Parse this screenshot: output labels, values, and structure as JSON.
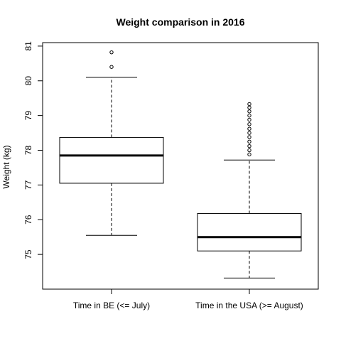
{
  "chart_data": {
    "type": "boxplot",
    "title": "Weight comparison in 2016",
    "xlabel": "",
    "ylabel": "Weight (kg)",
    "ylim": [
      74.0,
      81.1
    ],
    "yticks": [
      75,
      76,
      77,
      78,
      79,
      80,
      81
    ],
    "grid": false,
    "legend": "none",
    "colors": {
      "box": "#000000",
      "background": "#ffffff"
    },
    "groups": [
      {
        "label": "Time in BE (<= July)",
        "whisker_low": 75.55,
        "q1": 77.05,
        "median": 77.85,
        "q3": 78.37,
        "whisker_high": 80.1,
        "outliers": [
          80.4,
          80.82
        ]
      },
      {
        "label": "Time in the USA (>= August)",
        "whisker_low": 74.32,
        "q1": 75.1,
        "median": 75.5,
        "q3": 76.18,
        "whisker_high": 77.72,
        "outliers": [
          77.88,
          78.0,
          78.12,
          78.25,
          78.38,
          78.5,
          78.62,
          78.75,
          78.88,
          79.0,
          79.12,
          79.23,
          79.33
        ]
      }
    ]
  }
}
